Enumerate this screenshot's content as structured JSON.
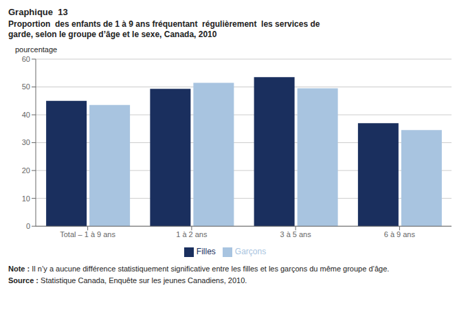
{
  "chart_data": {
    "type": "bar",
    "title": "Graphique  13",
    "subtitle": "Proportion  des enfants de 1 à 9 ans fréquentant  régulièrement  les services de garde, selon le groupe d’âge et le sexe, Canada, 2010",
    "y_label": "pourcentage",
    "categories": [
      "Total – 1 à 9 ans",
      "1 à 2 ans",
      "3 à 5 ans",
      "6 à 9 ans"
    ],
    "series": [
      {
        "name": "Filles",
        "color": "#1a2f5e",
        "values": [
          45.0,
          49.3,
          53.5,
          37.0
        ]
      },
      {
        "name": "Garçons",
        "color": "#a8c4e0",
        "values": [
          43.5,
          51.5,
          49.5,
          34.5
        ]
      }
    ],
    "ylim": [
      0,
      60
    ],
    "yticks": [
      0,
      10,
      20,
      30,
      40,
      50,
      60
    ],
    "grid": true,
    "legend": "bottom",
    "annotations": [
      "Note : Il n’y a aucune différence statistiquement significative entre les filles et les garçons du même groupe d’âge.",
      "Source : Statistique Canada, Enquête sur les jeunes Canadiens, 2010."
    ]
  }
}
